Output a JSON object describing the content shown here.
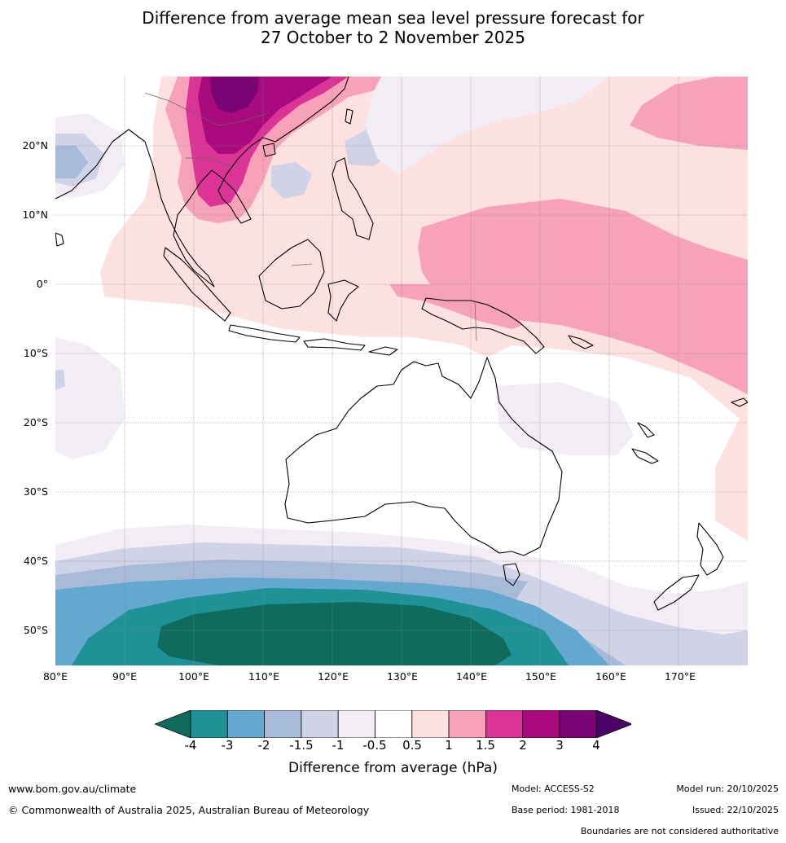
{
  "title_line1": "Difference from average mean sea level pressure forecast for",
  "title_line2": "27 October to 2 November 2025",
  "lat_labels": [
    "20°N",
    "10°N",
    "0°",
    "10°S",
    "20°S",
    "30°S",
    "40°S",
    "50°S"
  ],
  "lon_labels": [
    "80°E",
    "90°E",
    "100°E",
    "110°E",
    "120°E",
    "130°E",
    "140°E",
    "150°E",
    "160°E",
    "170°E"
  ],
  "colorbar": {
    "title": "Difference from average (hPa)",
    "tick_labels": [
      "-4",
      "-3",
      "-2",
      "-1.5",
      "-1",
      "-0.5",
      "0.5",
      "1",
      "1.5",
      "2",
      "3",
      "4"
    ],
    "colors": [
      "#0f6c5c",
      "#1e9296",
      "#62a8cf",
      "#a7bad9",
      "#d0d2e6",
      "#f2edf5",
      "#ffffff",
      "#fde0e0",
      "#f8a1ba",
      "#dc3496",
      "#a90a7e",
      "#7a0474",
      "#4b0168"
    ]
  },
  "footer": {
    "website": "www.bom.gov.au/climate",
    "copyright": "© Commonwealth of Australia 2025, Australian Bureau of Meteorology",
    "model": "Model: ACCESS-S2",
    "base_period": "Base period: 1981-2018",
    "model_run": "Model run: 20/10/2025",
    "issued": "Issued: 22/10/2025",
    "disclaimer": "Boundaries are not considered authoritative"
  }
}
